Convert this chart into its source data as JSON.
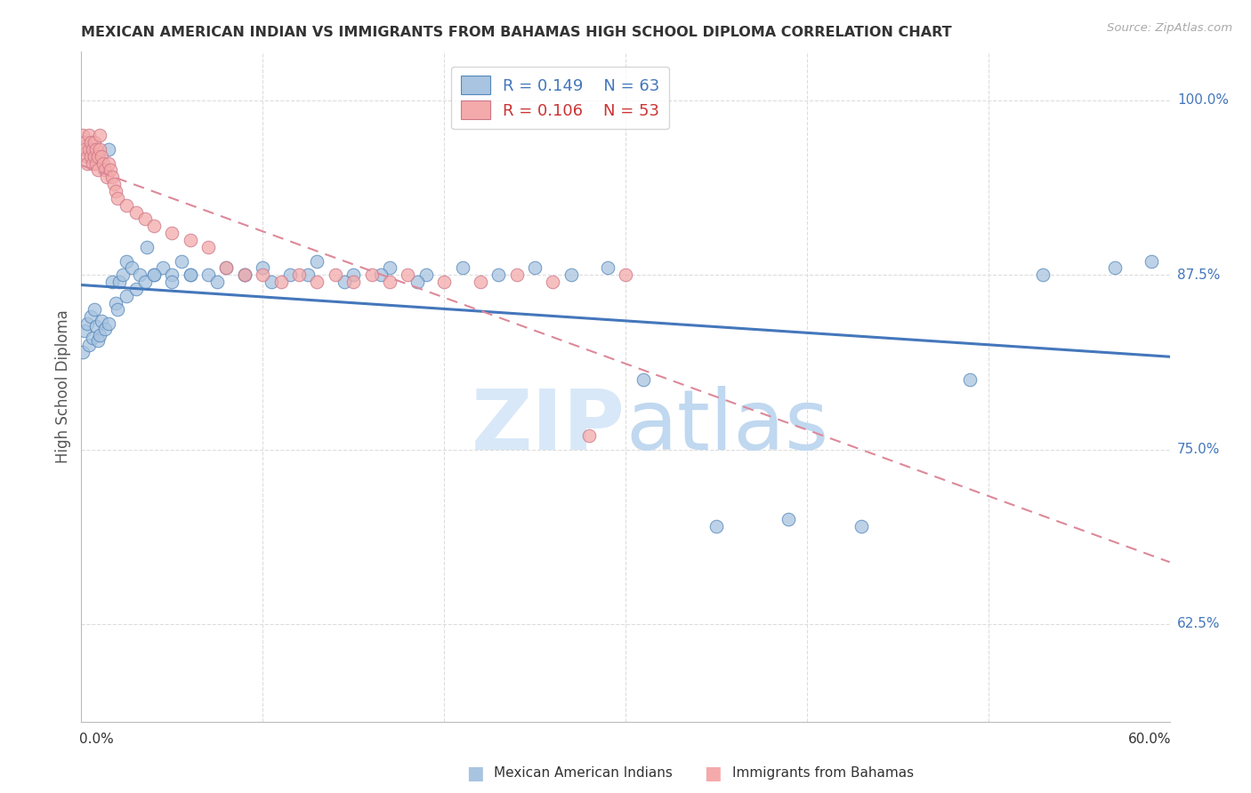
{
  "title": "MEXICAN AMERICAN INDIAN VS IMMIGRANTS FROM BAHAMAS HIGH SCHOOL DIPLOMA CORRELATION CHART",
  "source": "Source: ZipAtlas.com",
  "ylabel": "High School Diploma",
  "ytick_labels": [
    "62.5%",
    "75.0%",
    "87.5%",
    "100.0%"
  ],
  "ytick_values": [
    0.625,
    0.75,
    0.875,
    1.0
  ],
  "xmin": 0.0,
  "xmax": 0.6,
  "ymin": 0.555,
  "ymax": 1.035,
  "legend_r1": "R = 0.149",
  "legend_n1": "N = 63",
  "legend_r2": "R = 0.106",
  "legend_n2": "N = 53",
  "blue_face": "#A8C4E0",
  "blue_edge": "#5588BB",
  "pink_face": "#F4AAAA",
  "pink_edge": "#CC7788",
  "line_blue_color": "#4477BB",
  "line_pink_color": "#DD8899",
  "grid_color": "#DDDDDD",
  "watermark_color": "#D8E8F8",
  "title_color": "#333333",
  "right_label_color": "#4477BB",
  "bottom_label_color": "#333333",
  "blue_x": [
    0.001,
    0.002,
    0.003,
    0.004,
    0.005,
    0.006,
    0.007,
    0.008,
    0.009,
    0.01,
    0.011,
    0.013,
    0.015,
    0.017,
    0.019,
    0.021,
    0.023,
    0.025,
    0.028,
    0.032,
    0.036,
    0.04,
    0.045,
    0.05,
    0.055,
    0.06,
    0.07,
    0.08,
    0.09,
    0.1,
    0.115,
    0.13,
    0.15,
    0.17,
    0.19,
    0.21,
    0.23,
    0.25,
    0.27,
    0.29,
    0.015,
    0.02,
    0.025,
    0.03,
    0.035,
    0.04,
    0.05,
    0.06,
    0.075,
    0.09,
    0.105,
    0.125,
    0.145,
    0.165,
    0.185,
    0.31,
    0.35,
    0.39,
    0.43,
    0.49,
    0.53,
    0.57,
    0.59
  ],
  "blue_y": [
    0.82,
    0.835,
    0.84,
    0.825,
    0.845,
    0.83,
    0.85,
    0.838,
    0.828,
    0.832,
    0.842,
    0.836,
    0.965,
    0.87,
    0.855,
    0.87,
    0.875,
    0.885,
    0.88,
    0.875,
    0.895,
    0.875,
    0.88,
    0.875,
    0.885,
    0.875,
    0.875,
    0.88,
    0.875,
    0.88,
    0.875,
    0.885,
    0.875,
    0.88,
    0.875,
    0.88,
    0.875,
    0.88,
    0.875,
    0.88,
    0.84,
    0.85,
    0.86,
    0.865,
    0.87,
    0.875,
    0.87,
    0.875,
    0.87,
    0.875,
    0.87,
    0.875,
    0.87,
    0.875,
    0.87,
    0.8,
    0.695,
    0.7,
    0.695,
    0.8,
    0.875,
    0.88,
    0.885
  ],
  "pink_x": [
    0.001,
    0.002,
    0.002,
    0.003,
    0.003,
    0.004,
    0.004,
    0.005,
    0.005,
    0.006,
    0.006,
    0.007,
    0.007,
    0.008,
    0.008,
    0.009,
    0.009,
    0.01,
    0.01,
    0.011,
    0.012,
    0.013,
    0.014,
    0.015,
    0.016,
    0.017,
    0.018,
    0.019,
    0.02,
    0.025,
    0.03,
    0.035,
    0.04,
    0.05,
    0.06,
    0.07,
    0.08,
    0.09,
    0.1,
    0.11,
    0.12,
    0.13,
    0.14,
    0.15,
    0.16,
    0.17,
    0.18,
    0.2,
    0.22,
    0.24,
    0.26,
    0.28,
    0.3
  ],
  "pink_y": [
    0.975,
    0.97,
    0.965,
    0.96,
    0.955,
    0.975,
    0.965,
    0.96,
    0.97,
    0.955,
    0.965,
    0.96,
    0.97,
    0.955,
    0.965,
    0.95,
    0.96,
    0.975,
    0.965,
    0.96,
    0.955,
    0.95,
    0.945,
    0.955,
    0.95,
    0.945,
    0.94,
    0.935,
    0.93,
    0.925,
    0.92,
    0.915,
    0.91,
    0.905,
    0.9,
    0.895,
    0.88,
    0.875,
    0.875,
    0.87,
    0.875,
    0.87,
    0.875,
    0.87,
    0.875,
    0.87,
    0.875,
    0.87,
    0.87,
    0.875,
    0.87,
    0.76,
    0.875
  ]
}
